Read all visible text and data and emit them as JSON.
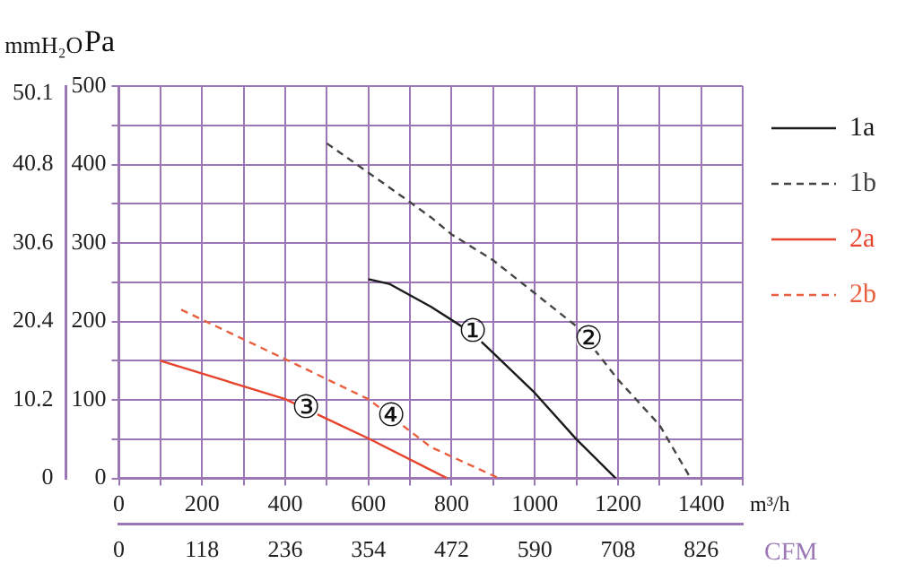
{
  "chart_data": {
    "type": "line",
    "xlabel": "m³/h",
    "x2label": "CFM",
    "ylabel": "Pa",
    "y2label": "mmH₂O",
    "xlim": [
      0,
      1500
    ],
    "xticks": [
      0,
      {
        "value": 100,
        "label": null
      },
      200,
      {
        "value": 300,
        "label": null
      },
      400,
      {
        "value": 500,
        "label": null
      },
      600,
      {
        "value": 700,
        "label": null
      },
      800,
      {
        "value": 900,
        "label": null
      },
      1000,
      {
        "value": 1100,
        "label": null
      },
      1200,
      {
        "value": 1300,
        "label": null
      },
      1400,
      {
        "value": 1500,
        "label": null
      }
    ],
    "x2lim": [
      0,
      885
    ],
    "x2ticks": [
      0,
      118,
      236,
      354,
      472,
      590,
      708,
      826
    ],
    "ylim": [
      0,
      500
    ],
    "yticks": [
      0,
      {
        "value": 50,
        "label": null
      },
      100,
      {
        "value": 150,
        "label": null
      },
      200,
      {
        "value": 250,
        "label": null
      },
      300,
      {
        "value": 350,
        "label": null
      },
      400,
      {
        "value": 450,
        "label": null
      },
      500
    ],
    "y2lim": [
      0,
      51
    ],
    "y2ticks": [
      0,
      10.2,
      20.4,
      30.6,
      40.8,
      50.1
    ],
    "grid": true,
    "legend": "right",
    "marker": "none",
    "series": [
      {
        "name": "1a",
        "color": "#1a1a1a",
        "line_style": "solid",
        "x": [
          600,
          650,
          750,
          850,
          900,
          1000,
          1100,
          1195
        ],
        "values": [
          254,
          248,
          219,
          185,
          160,
          109,
          50,
          0
        ]
      },
      {
        "name": "1b",
        "color": "#444444",
        "line_style": "dashed",
        "x": [
          500,
          650,
          750,
          800,
          900,
          1000,
          1100,
          1200,
          1300,
          1375
        ],
        "values": [
          427,
          371,
          333,
          311,
          278,
          236,
          194,
          126,
          68,
          0
        ]
      },
      {
        "name": "2a",
        "color": "#e8432c",
        "line_style": "solid",
        "x": [
          100,
          400,
          500,
          600,
          790
        ],
        "values": [
          150,
          101,
          76,
          51,
          0
        ]
      },
      {
        "name": "2b",
        "color": "#e8603f",
        "line_style": "dashed",
        "x": [
          150,
          400,
          600,
          750,
          915
        ],
        "values": [
          215,
          152,
          101,
          40,
          0
        ]
      }
    ],
    "annotations": [
      {
        "text": "①",
        "x": 850,
        "y": 185
      },
      {
        "text": "②",
        "x": 1130,
        "y": 176
      },
      {
        "text": "③",
        "x": 450,
        "y": 88
      },
      {
        "text": "④",
        "x": 655,
        "y": 78
      }
    ]
  }
}
